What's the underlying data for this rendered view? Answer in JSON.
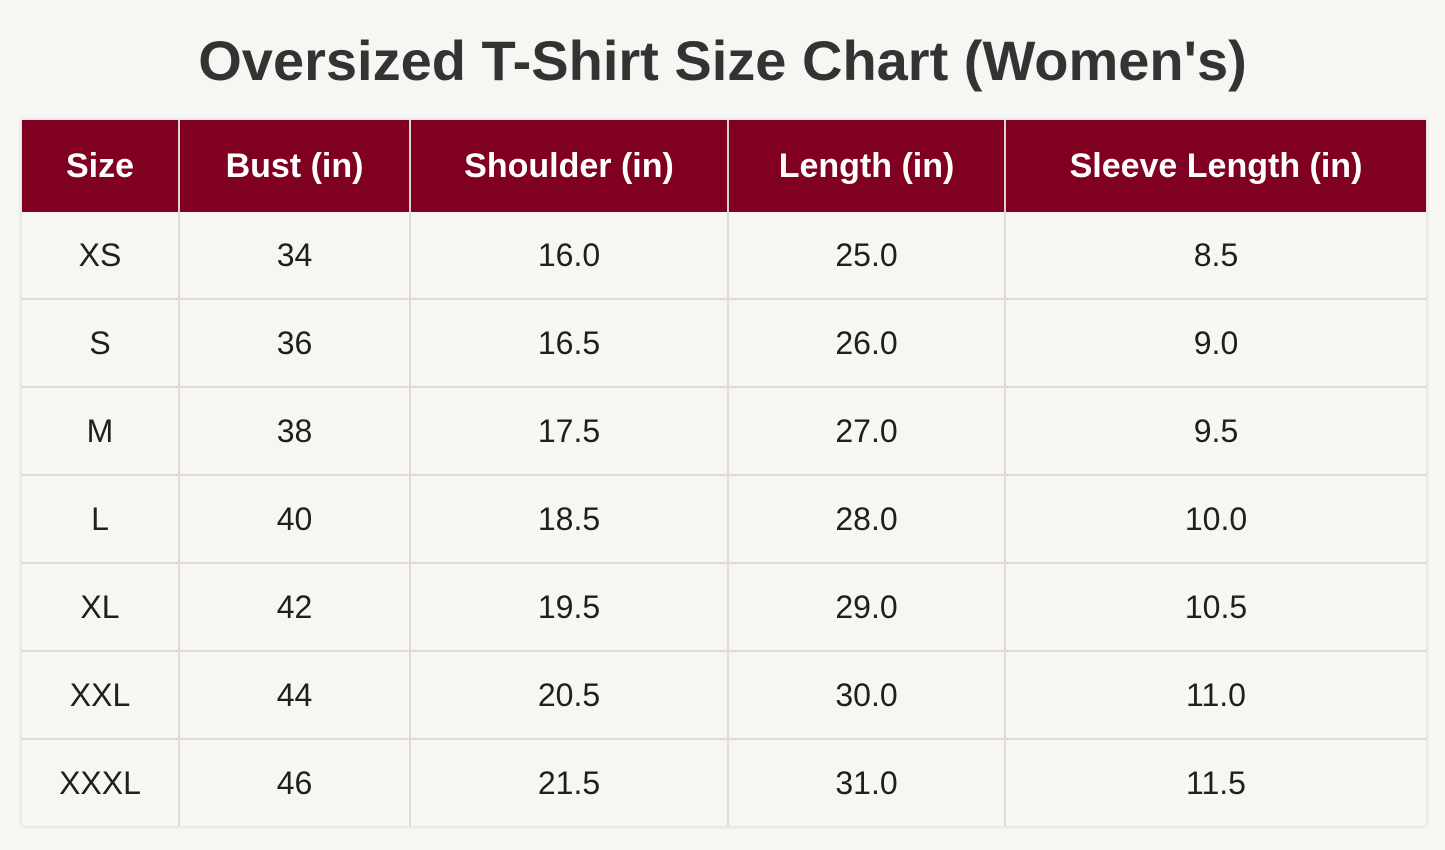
{
  "title": "Oversized T-Shirt Size Chart (Women's)",
  "colors": {
    "header_background": "#7f0020",
    "header_text": "#ffffff",
    "page_background": "#f7f6f2",
    "title_text": "#333333"
  },
  "table": {
    "headers": [
      "Size",
      "Bust (in)",
      "Shoulder (in)",
      "Length (in)",
      "Sleeve Length (in)"
    ],
    "rows": [
      [
        "XS",
        "34",
        "16.0",
        "25.0",
        "8.5"
      ],
      [
        "S",
        "36",
        "16.5",
        "26.0",
        "9.0"
      ],
      [
        "M",
        "38",
        "17.5",
        "27.0",
        "9.5"
      ],
      [
        "L",
        "40",
        "18.5",
        "28.0",
        "10.0"
      ],
      [
        "XL",
        "42",
        "19.5",
        "29.0",
        "10.5"
      ],
      [
        "XXL",
        "44",
        "20.5",
        "30.0",
        "11.0"
      ],
      [
        "XXXL",
        "46",
        "21.5",
        "31.0",
        "11.5"
      ]
    ]
  }
}
